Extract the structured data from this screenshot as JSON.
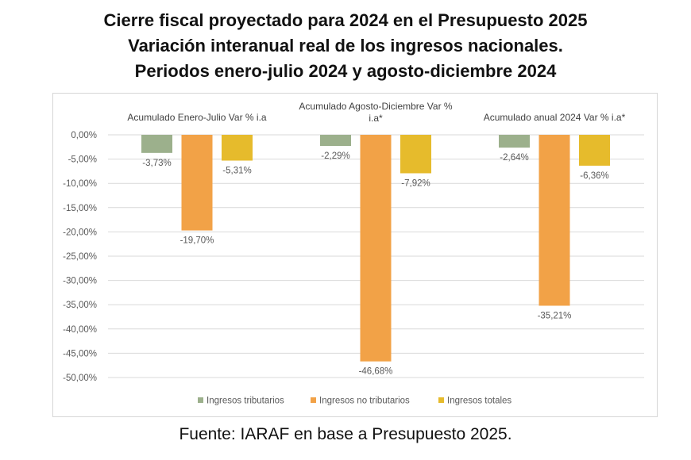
{
  "chart_data": {
    "type": "bar",
    "title": [
      "Cierre fiscal proyectado para 2024 en el Presupuesto 2025",
      "Variación interanual real de los ingresos nacionales.",
      "Periodos enero-julio 2024 y agosto-diciembre 2024"
    ],
    "categories": [
      "Acumulado Enero-Julio Var % i.a",
      "Acumulado Agosto-Diciembre Var % i.a*",
      "Acumulado anual 2024 Var % i.a*"
    ],
    "category_label_lines": [
      [
        "Acumulado Enero-Julio Var % i.a"
      ],
      [
        "Acumulado Agosto-Diciembre Var %",
        "i.a*"
      ],
      [
        "Acumulado anual 2024 Var % i.a*"
      ]
    ],
    "series": [
      {
        "name": "Ingresos tributarios",
        "color": "#9cb08c",
        "values": [
          -3.73,
          -2.29,
          -2.64
        ],
        "labels": [
          "-3,73%",
          "-2,29%",
          "-2,64%"
        ]
      },
      {
        "name": "Ingresos no tributarios",
        "color": "#f2a247",
        "values": [
          -19.7,
          -46.68,
          -35.21
        ],
        "labels": [
          "-19,70%",
          "-46,68%",
          "-35,21%"
        ]
      },
      {
        "name": "Ingresos totales",
        "color": "#e6bb2c",
        "values": [
          -5.31,
          -7.92,
          -6.36
        ],
        "labels": [
          "-5,31%",
          "-7,92%",
          "-6,36%"
        ]
      }
    ],
    "yticks": [
      0,
      -5,
      -10,
      -15,
      -20,
      -25,
      -30,
      -35,
      -40,
      -45,
      -50
    ],
    "ytick_labels": [
      "0,00%",
      "-5,00%",
      "-10,00%",
      "-15,00%",
      "-20,00%",
      "-25,00%",
      "-30,00%",
      "-35,00%",
      "-40,00%",
      "-45,00%",
      "-50,00%"
    ],
    "ylim": [
      -50,
      0
    ],
    "xlabel": "",
    "ylabel": "",
    "grid": true,
    "legend_position": "bottom"
  },
  "source": "Fuente: IARAF en base a Presupuesto 2025."
}
